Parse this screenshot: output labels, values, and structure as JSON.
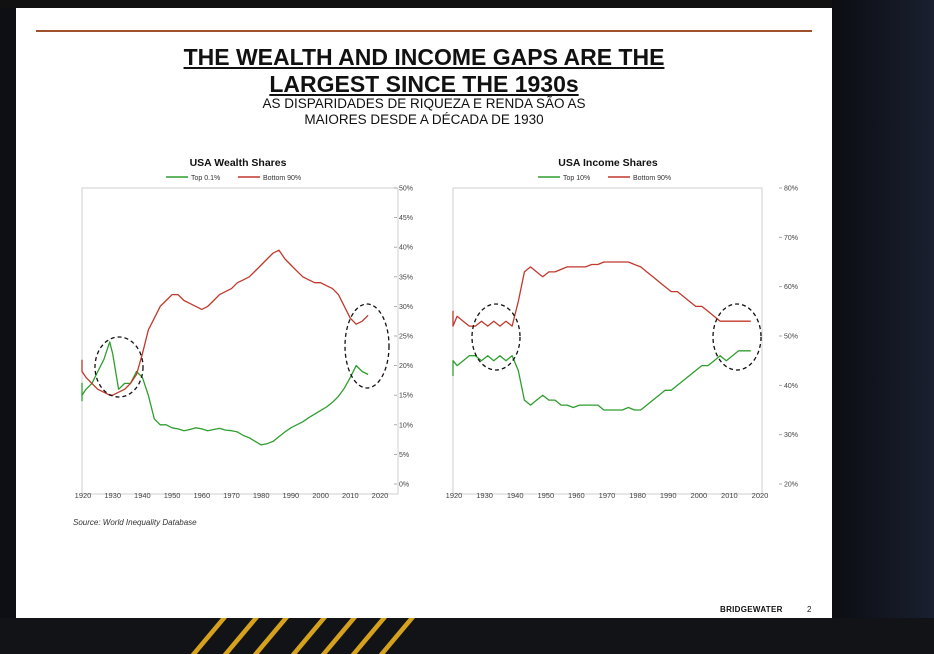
{
  "slide": {
    "title_line1": "THE WEALTH AND INCOME GAPS ARE THE",
    "title_line2": "LARGEST SINCE THE 1930s",
    "subtitle_line1": "AS DISPARIDADES DE RIQUEZA E RENDA SÃO AS",
    "subtitle_line2": "MAIORES DESDE A DÉCADA DE 1930",
    "source": "Source: World Inequality Database",
    "brand": "BRIDGEWATER",
    "page_number": "2"
  },
  "colors": {
    "top": "#2e9e2e",
    "bottom": "#c0392b",
    "rule": "#a0522d",
    "accent": "#d6a21d"
  },
  "chart_data": [
    {
      "type": "line",
      "title": "USA Wealth Shares",
      "xlabel": "",
      "ylabel": "",
      "xlim": [
        1920,
        2020
      ],
      "ylim": [
        0,
        50
      ],
      "y_unit": "%",
      "x_ticks": [
        1920,
        1930,
        1940,
        1950,
        1960,
        1970,
        1980,
        1990,
        2000,
        2010,
        2020
      ],
      "y_ticks": [
        "0%",
        "5%",
        "10%",
        "15%",
        "20%",
        "25%",
        "30%",
        "35%",
        "40%",
        "45%",
        "50%"
      ],
      "legend_position": "top-center",
      "series": [
        {
          "name": "Top 0.1%",
          "color": "#2e9e2e",
          "x": [
            1913,
            1915,
            1917,
            1919,
            1921,
            1923,
            1925,
            1927,
            1929,
            1930,
            1932,
            1934,
            1936,
            1938,
            1940,
            1942,
            1944,
            1946,
            1948,
            1950,
            1952,
            1954,
            1956,
            1958,
            1960,
            1962,
            1964,
            1966,
            1968,
            1970,
            1972,
            1974,
            1976,
            1978,
            1980,
            1982,
            1984,
            1986,
            1988,
            1990,
            1992,
            1994,
            1996,
            1998,
            2000,
            2002,
            2004,
            2006,
            2008,
            2010,
            2012,
            2014,
            2016
          ],
          "y": [
            14,
            15,
            17,
            15,
            16,
            17,
            19,
            21,
            24,
            22,
            16,
            17,
            17,
            19,
            18,
            15,
            11,
            10,
            10,
            9.5,
            9.3,
            9.0,
            9.2,
            9.5,
            9.3,
            9.0,
            9.2,
            9.4,
            9.1,
            9.0,
            8.8,
            8.2,
            7.8,
            7.2,
            6.6,
            6.8,
            7.2,
            8.0,
            8.8,
            9.5,
            10.0,
            10.5,
            11.2,
            11.8,
            12.4,
            13.0,
            13.8,
            14.8,
            16.2,
            18.0,
            20.0,
            19.0,
            18.5
          ]
        },
        {
          "name": "Bottom 90%",
          "color": "#c0392b",
          "x": [
            1913,
            1915,
            1917,
            1919,
            1921,
            1923,
            1925,
            1927,
            1929,
            1930,
            1932,
            1934,
            1936,
            1938,
            1940,
            1942,
            1944,
            1946,
            1948,
            1950,
            1952,
            1954,
            1956,
            1958,
            1960,
            1962,
            1964,
            1966,
            1968,
            1970,
            1972,
            1974,
            1976,
            1978,
            1980,
            1982,
            1984,
            1986,
            1988,
            1990,
            1992,
            1994,
            1996,
            1998,
            2000,
            2002,
            2004,
            2006,
            2008,
            2010,
            2012,
            2014,
            2016
          ],
          "y": [
            21,
            21,
            20,
            19,
            18,
            17,
            16,
            15.5,
            15,
            15,
            15.5,
            16,
            17,
            18.5,
            22,
            26,
            28,
            30,
            31,
            32,
            32,
            31,
            30.5,
            30,
            29.5,
            30,
            31,
            32,
            32.5,
            33,
            34,
            34.5,
            35,
            36,
            37,
            38,
            39,
            39.5,
            38,
            37,
            36,
            35,
            34.5,
            34,
            34,
            33.5,
            33,
            32,
            30,
            28,
            27,
            27.5,
            28.5
          ]
        }
      ],
      "annotations": [
        "circle around 1930s",
        "circle around 2010s"
      ]
    },
    {
      "type": "line",
      "title": "USA Income Shares",
      "xlabel": "",
      "ylabel": "",
      "xlim": [
        1920,
        2020
      ],
      "ylim": [
        20,
        80
      ],
      "y_unit": "%",
      "x_ticks": [
        1920,
        1930,
        1940,
        1950,
        1960,
        1970,
        1980,
        1990,
        2000,
        2010,
        2020
      ],
      "y_ticks": [
        "20%",
        "30%",
        "40%",
        "50%",
        "60%",
        "70%",
        "80%"
      ],
      "legend_position": "top-center",
      "series": [
        {
          "name": "Top 10%",
          "color": "#2e9e2e",
          "x": [
            1913,
            1915,
            1917,
            1919,
            1921,
            1923,
            1925,
            1927,
            1929,
            1931,
            1933,
            1935,
            1937,
            1939,
            1941,
            1943,
            1945,
            1947,
            1949,
            1951,
            1953,
            1955,
            1957,
            1959,
            1961,
            1963,
            1965,
            1967,
            1969,
            1971,
            1973,
            1975,
            1977,
            1979,
            1981,
            1983,
            1985,
            1987,
            1989,
            1991,
            1993,
            1995,
            1997,
            1999,
            2001,
            2003,
            2005,
            2007,
            2009,
            2011,
            2013,
            2015,
            2017
          ],
          "y": [
            43,
            45,
            42,
            45,
            44,
            45,
            46,
            46,
            45,
            46,
            45,
            46,
            45,
            46,
            43,
            37,
            36,
            37,
            38,
            37,
            37,
            36,
            36,
            35.5,
            36,
            36,
            36,
            36,
            35,
            35,
            35,
            35,
            35.5,
            35,
            35,
            36,
            37,
            38,
            39,
            39,
            40,
            41,
            42,
            43,
            44,
            44,
            45,
            46,
            45,
            46,
            47,
            47,
            47
          ]
        },
        {
          "name": "Bottom 90%",
          "color": "#c0392b",
          "x": [
            1913,
            1915,
            1917,
            1919,
            1921,
            1923,
            1925,
            1927,
            1929,
            1931,
            1933,
            1935,
            1937,
            1939,
            1941,
            1943,
            1945,
            1947,
            1949,
            1951,
            1953,
            1955,
            1957,
            1959,
            1961,
            1963,
            1965,
            1967,
            1969,
            1971,
            1973,
            1975,
            1977,
            1979,
            1981,
            1983,
            1985,
            1987,
            1989,
            1991,
            1993,
            1995,
            1997,
            1999,
            2001,
            2003,
            2005,
            2007,
            2009,
            2011,
            2013,
            2015,
            2017
          ],
          "y": [
            55,
            53,
            55,
            52,
            54,
            53,
            52,
            52,
            53,
            52,
            53,
            52,
            53,
            52,
            57,
            63,
            64,
            63,
            62,
            63,
            63,
            63.5,
            64,
            64,
            64,
            64,
            64.5,
            64.5,
            65,
            65,
            65,
            65,
            65,
            64.5,
            64,
            63,
            62,
            61,
            60,
            59,
            59,
            58,
            57,
            56,
            56,
            55,
            54,
            53,
            53,
            53,
            53,
            53,
            53
          ]
        }
      ],
      "annotations": [
        "circle around 1930s",
        "circle around 2010s"
      ]
    }
  ]
}
